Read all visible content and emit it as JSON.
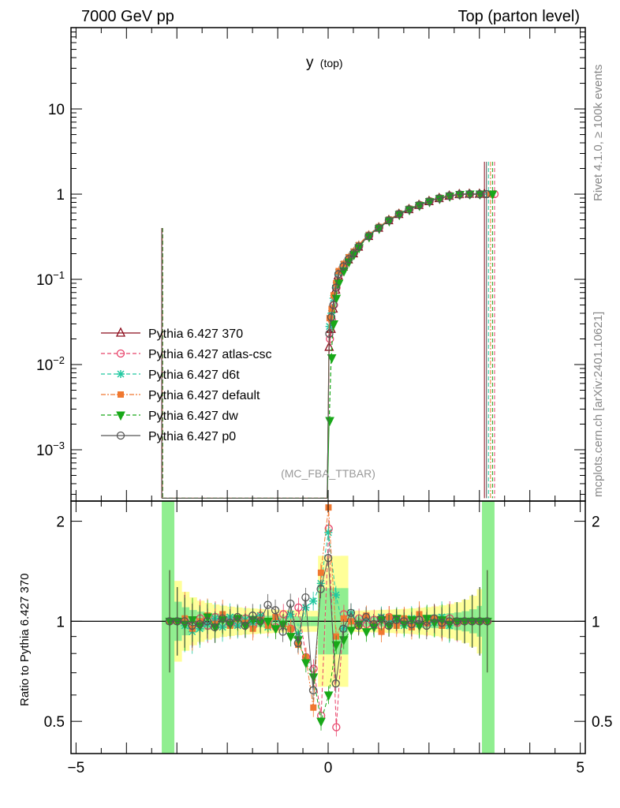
{
  "header": {
    "left": "7000 GeV pp",
    "right": "Top (parton level)"
  },
  "side_labels": {
    "rivet": "Rivet 4.1.0, ≥ 100k events",
    "mcplots": "mcplots.cern.ch [arXiv:2401.10621]"
  },
  "chart_data": [
    {
      "panel": "main",
      "type": "line",
      "title": "y (top)",
      "title_main": "y",
      "title_sub": "(top)",
      "annotation": "(MC_FBA_TTBAR)",
      "xlabel": "",
      "ylabel": "",
      "xlim": [
        -5.1,
        5.1
      ],
      "ylim": [
        0.00025,
        90
      ],
      "yscale": "log",
      "y_ticks": [
        {
          "value": 10,
          "base": "10",
          "exp": ""
        },
        {
          "value": 1,
          "base": "1",
          "exp": ""
        },
        {
          "value": 0.1,
          "base": "10",
          "exp": "−1"
        },
        {
          "value": 0.01,
          "base": "10",
          "exp": "−2"
        },
        {
          "value": 0.001,
          "base": "10",
          "exp": "−3"
        }
      ],
      "legend_position": "left",
      "x": [
        0.02,
        0.06,
        0.1,
        0.15,
        0.2,
        0.3,
        0.4,
        0.5,
        0.6,
        0.7,
        0.8,
        0.9,
        1.0,
        1.1,
        1.2,
        1.3,
        1.4,
        1.5,
        1.6,
        1.7,
        1.8,
        1.9,
        2.0,
        2.1,
        2.2,
        2.3,
        2.4,
        2.5,
        2.6,
        2.7,
        2.8,
        2.9,
        3.0,
        3.1
      ],
      "series": [
        {
          "name": "Pythia 6.427 370",
          "color": "#8b0a1a",
          "marker": "triangle",
          "dash": "",
          "offset": 0.0,
          "values": [
            0.016,
            0.026,
            0.045,
            0.075,
            0.11,
            0.14,
            0.17,
            0.2,
            0.24,
            0.28,
            0.32,
            0.36,
            0.4,
            0.44,
            0.49,
            0.53,
            0.58,
            0.62,
            0.66,
            0.7,
            0.74,
            0.78,
            0.82,
            0.86,
            0.89,
            0.92,
            0.95,
            0.97,
            0.99,
            1.0,
            1.0,
            1.0,
            1.0,
            1.0
          ]
        },
        {
          "name": "Pythia 6.427 atlas-csc",
          "color": "#e8436a",
          "marker": "circle",
          "dash": "5,3",
          "offset": 0.25,
          "values": [
            0.02,
            0.033,
            0.05,
            0.08,
            0.115,
            0.145,
            0.175,
            0.205,
            0.245,
            0.285,
            0.325,
            0.365,
            0.405,
            0.445,
            0.495,
            0.535,
            0.585,
            0.625,
            0.665,
            0.705,
            0.745,
            0.785,
            0.825,
            0.865,
            0.895,
            0.925,
            0.955,
            0.975,
            0.99,
            1.0,
            1.0,
            1.0,
            1.0,
            1.0
          ]
        },
        {
          "name": "Pythia 6.427 d6t",
          "color": "#20c8a0",
          "marker": "star",
          "dash": "5,3",
          "offset": 0.1,
          "values": [
            0.028,
            0.04,
            0.06,
            0.085,
            0.12,
            0.15,
            0.18,
            0.21,
            0.25,
            0.29,
            0.33,
            0.37,
            0.41,
            0.45,
            0.5,
            0.54,
            0.59,
            0.63,
            0.67,
            0.71,
            0.75,
            0.79,
            0.83,
            0.87,
            0.9,
            0.93,
            0.96,
            0.98,
            0.99,
            1.0,
            1.0,
            1.0,
            1.0,
            1.0
          ]
        },
        {
          "name": "Pythia 6.427 default",
          "color": "#f07830",
          "marker": "square",
          "dash": "6,2,2,2",
          "offset": 0.15,
          "values": [
            0.035,
            0.045,
            0.065,
            0.09,
            0.125,
            0.152,
            0.182,
            0.212,
            0.252,
            0.292,
            0.332,
            0.372,
            0.412,
            0.452,
            0.502,
            0.542,
            0.592,
            0.632,
            0.672,
            0.712,
            0.752,
            0.792,
            0.832,
            0.872,
            0.902,
            0.932,
            0.962,
            0.98,
            0.99,
            1.0,
            1.0,
            1.0,
            1.0,
            1.0
          ]
        },
        {
          "name": "Pythia 6.427 dw",
          "color": "#18a818",
          "marker": "triangle-down",
          "dash": "5,3",
          "offset": 0.2,
          "values": [
            0.0022,
            0.012,
            0.03,
            0.06,
            0.09,
            0.125,
            0.16,
            0.195,
            0.235,
            0.275,
            0.315,
            0.355,
            0.395,
            0.435,
            0.485,
            0.525,
            0.575,
            0.615,
            0.655,
            0.695,
            0.735,
            0.775,
            0.815,
            0.855,
            0.885,
            0.915,
            0.945,
            0.97,
            0.99,
            1.0,
            1.0,
            1.0,
            1.0,
            1.0
          ]
        },
        {
          "name": "Pythia 6.427 p0",
          "color": "#555555",
          "marker": "circle",
          "dash": "",
          "offset": 0.05,
          "values": [
            0.023,
            0.036,
            0.05,
            0.08,
            0.115,
            0.142,
            0.172,
            0.202,
            0.242,
            0.282,
            0.322,
            0.362,
            0.402,
            0.442,
            0.492,
            0.532,
            0.582,
            0.622,
            0.662,
            0.702,
            0.742,
            0.782,
            0.822,
            0.862,
            0.892,
            0.922,
            0.952,
            0.972,
            0.99,
            1.0,
            1.0,
            1.0,
            1.0,
            1.0
          ]
        }
      ]
    },
    {
      "panel": "ratio",
      "type": "line",
      "ylabel": "Ratio to Pythia 6.427 370",
      "xlim": [
        -5.1,
        5.1
      ],
      "ylim": [
        0.4,
        2.3
      ],
      "yscale": "log",
      "x_ticks": [
        {
          "value": -5,
          "label": "−5"
        },
        {
          "value": 0,
          "label": "0"
        },
        {
          "value": 5,
          "label": "5"
        }
      ],
      "y_ticks": [
        {
          "value": 2,
          "label": "2"
        },
        {
          "value": 1,
          "label": "1"
        },
        {
          "value": 0.5,
          "label": "0.5"
        }
      ],
      "band_x": [
        -3.2,
        3.2
      ],
      "band_color_outer": "#ffff99",
      "band_color_inner": "#90ee90",
      "x": [
        -3.15,
        -3.0,
        -2.85,
        -2.7,
        -2.55,
        -2.4,
        -2.25,
        -2.1,
        -1.95,
        -1.8,
        -1.65,
        -1.5,
        -1.35,
        -1.2,
        -1.05,
        -0.9,
        -0.75,
        -0.6,
        -0.45,
        -0.3,
        -0.15,
        0.0,
        0.15,
        0.3,
        0.45,
        0.6,
        0.75,
        0.9,
        1.05,
        1.2,
        1.35,
        1.5,
        1.65,
        1.8,
        1.95,
        2.1,
        2.25,
        2.4,
        2.55,
        2.7,
        2.85,
        3.0,
        3.15
      ],
      "series_values": {
        "Pythia 6.427 atlas-csc": [
          1.0,
          1.0,
          1.0,
          0.98,
          1.02,
          0.97,
          1.03,
          0.99,
          1.01,
          0.98,
          1.02,
          0.97,
          1.04,
          0.99,
          0.96,
          1.05,
          0.95,
          1.1,
          0.78,
          0.72,
          0.52,
          1.9,
          0.48,
          1.05,
          0.97,
          1.02,
          0.98,
          1.01,
          0.97,
          1.03,
          0.99,
          1.01,
          0.98,
          1.02,
          0.99,
          1.01,
          0.98,
          1.02,
          0.99,
          1.0,
          1.0,
          1.0,
          1.0
        ],
        "Pythia 6.427 d6t": [
          1.0,
          1.0,
          0.97,
          0.93,
          0.95,
          0.98,
          1.02,
          0.96,
          1.03,
          0.97,
          1.01,
          0.99,
          1.04,
          0.96,
          1.02,
          0.98,
          1.05,
          0.92,
          1.1,
          1.15,
          1.3,
          1.85,
          1.2,
          0.95,
          1.06,
          0.98,
          1.02,
          0.97,
          1.03,
          0.99,
          1.01,
          0.97,
          1.02,
          0.98,
          1.01,
          0.99,
          1.03,
          0.97,
          1.0,
          1.0,
          1.0,
          1.0,
          1.0
        ],
        "Pythia 6.427 default": [
          1.0,
          1.0,
          1.02,
          0.95,
          1.0,
          1.04,
          0.98,
          1.05,
          0.97,
          1.02,
          0.99,
          0.95,
          1.01,
          0.97,
          1.03,
          0.98,
          0.95,
          0.85,
          0.78,
          0.55,
          1.4,
          2.2,
          0.9,
          1.02,
          1.0,
          0.97,
          1.04,
          0.98,
          0.93,
          1.03,
          0.97,
          1.02,
          0.96,
          1.05,
          0.99,
          1.02,
          0.97,
          1.0,
          1.0,
          1.0,
          1.0,
          1.0,
          1.0
        ],
        "Pythia 6.427 dw": [
          1.0,
          1.0,
          0.98,
          1.01,
          0.97,
          1.03,
          0.96,
          1.01,
          0.98,
          1.02,
          0.97,
          1.01,
          0.99,
          1.0,
          0.95,
          0.98,
          0.9,
          0.88,
          0.75,
          0.68,
          0.5,
          0.6,
          0.85,
          0.88,
          0.94,
          0.98,
          0.93,
          0.96,
          1.01,
          0.97,
          1.02,
          0.98,
          1.01,
          0.97,
          1.02,
          0.99,
          1.01,
          0.98,
          1.0,
          1.0,
          1.0,
          1.0,
          1.0
        ],
        "Pythia 6.427 p0": [
          1.0,
          1.0,
          1.0,
          0.97,
          0.98,
          1.0,
          0.96,
          1.02,
          0.99,
          1.03,
          0.97,
          1.04,
          1.0,
          1.12,
          1.08,
          0.93,
          1.13,
          0.86,
          1.18,
          0.62,
          1.25,
          1.55,
          0.65,
          0.95,
          1.06,
          0.97,
          1.03,
          0.98,
          1.02,
          0.97,
          1.01,
          1.0,
          0.98,
          1.01,
          0.97,
          1.02,
          0.99,
          1.0,
          1.0,
          1.0,
          1.0,
          1.0,
          1.0
        ]
      }
    }
  ]
}
